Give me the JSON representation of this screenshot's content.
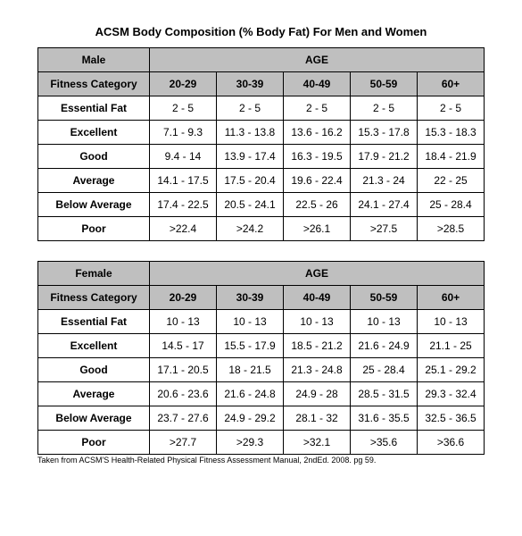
{
  "title": "ACSM Body Composition (% Body Fat) For Men and Women",
  "source": "Taken from ACSM'S Health-Related Physical Fitness Assessment Manual, 2ndEd. 2008. pg 59.",
  "male": {
    "gender_label": "Male",
    "age_label": "AGE",
    "category_label": "Fitness Category",
    "age_ranges": [
      "20-29",
      "30-39",
      "40-49",
      "50-59",
      "60+"
    ],
    "rows": [
      {
        "cat": "Essential Fat",
        "v": [
          "2 - 5",
          "2 - 5",
          "2 - 5",
          "2 - 5",
          "2 - 5"
        ]
      },
      {
        "cat": "Excellent",
        "v": [
          "7.1 - 9.3",
          "11.3 - 13.8",
          "13.6 - 16.2",
          "15.3 - 17.8",
          "15.3 - 18.3"
        ]
      },
      {
        "cat": "Good",
        "v": [
          "9.4 - 14",
          "13.9 - 17.4",
          "16.3 - 19.5",
          "17.9 - 21.2",
          "18.4 - 21.9"
        ]
      },
      {
        "cat": "Average",
        "v": [
          "14.1 - 17.5",
          "17.5 - 20.4",
          "19.6 - 22.4",
          "21.3 - 24",
          "22 - 25"
        ]
      },
      {
        "cat": "Below Average",
        "v": [
          "17.4 - 22.5",
          "20.5 - 24.1",
          "22.5 - 26",
          "24.1 - 27.4",
          "25 - 28.4"
        ]
      },
      {
        "cat": "Poor",
        "v": [
          ">22.4",
          ">24.2",
          ">26.1",
          ">27.5",
          ">28.5"
        ]
      }
    ]
  },
  "female": {
    "gender_label": "Female",
    "age_label": "AGE",
    "category_label": "Fitness Category",
    "age_ranges": [
      "20-29",
      "30-39",
      "40-49",
      "50-59",
      "60+"
    ],
    "rows": [
      {
        "cat": "Essential Fat",
        "v": [
          "10 - 13",
          "10 - 13",
          "10 - 13",
          "10 - 13",
          "10 - 13"
        ]
      },
      {
        "cat": "Excellent",
        "v": [
          "14.5 - 17",
          "15.5 - 17.9",
          "18.5 - 21.2",
          "21.6 - 24.9",
          "21.1 - 25"
        ]
      },
      {
        "cat": "Good",
        "v": [
          "17.1 - 20.5",
          "18 - 21.5",
          "21.3 - 24.8",
          "25 - 28.4",
          "25.1 - 29.2"
        ]
      },
      {
        "cat": "Average",
        "v": [
          "20.6 - 23.6",
          "21.6 - 24.8",
          "24.9 - 28",
          "28.5 - 31.5",
          "29.3 - 32.4"
        ]
      },
      {
        "cat": "Below Average",
        "v": [
          "23.7 - 27.6",
          "24.9 - 29.2",
          "28.1 - 32",
          "31.6 - 35.5",
          "32.5 - 36.5"
        ]
      },
      {
        "cat": "Poor",
        "v": [
          ">27.7",
          ">29.3",
          ">32.1",
          ">35.6",
          ">36.6"
        ]
      }
    ]
  },
  "style": {
    "header_bg": "#bfbfbf",
    "border_color": "#000000",
    "font_family": "Arial",
    "title_fontsize": 13,
    "cell_fontsize": 12,
    "source_fontsize": 9
  }
}
